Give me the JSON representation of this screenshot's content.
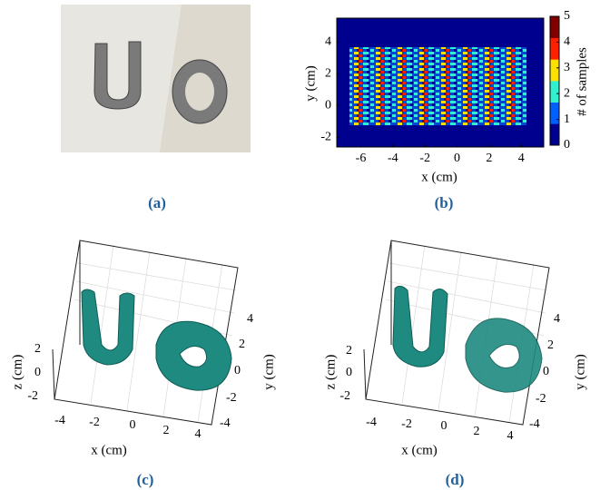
{
  "panels": [
    {
      "label": "(a)"
    },
    {
      "label": "(b)",
      "x_label": "x (cm)",
      "y_label": "y (cm)",
      "xlim": [
        -7.5,
        5.4
      ],
      "ylim": [
        -2.6,
        5.5
      ],
      "xticks": [
        -6,
        -4,
        -2,
        0,
        2,
        4
      ],
      "yticks": [
        -2,
        0,
        2,
        4
      ],
      "colorbar_label": "# of samples",
      "colorbar_ticks": [
        0,
        1,
        2,
        3,
        4,
        5
      ],
      "colorbar_colors": [
        "#00008f",
        "#0060ff",
        "#30f0d0",
        "#ffe000",
        "#ff2000",
        "#800000"
      ]
    },
    {
      "label": "(c)",
      "x_label": "x (cm)",
      "y_label": "y (cm)",
      "z_label": "z (cm)",
      "xticks": [
        -4,
        -2,
        0,
        2,
        4
      ],
      "yticks": [
        -4,
        -2,
        0,
        2,
        4
      ],
      "zticks": [
        -2,
        0,
        2
      ]
    },
    {
      "label": "(d)",
      "x_label": "x (cm)",
      "y_label": "y (cm)",
      "z_label": "z (cm)",
      "xticks": [
        -4,
        -2,
        0,
        2,
        4
      ],
      "yticks": [
        -4,
        -2,
        0,
        2,
        4
      ],
      "zticks": [
        -2,
        0,
        2
      ]
    }
  ]
}
